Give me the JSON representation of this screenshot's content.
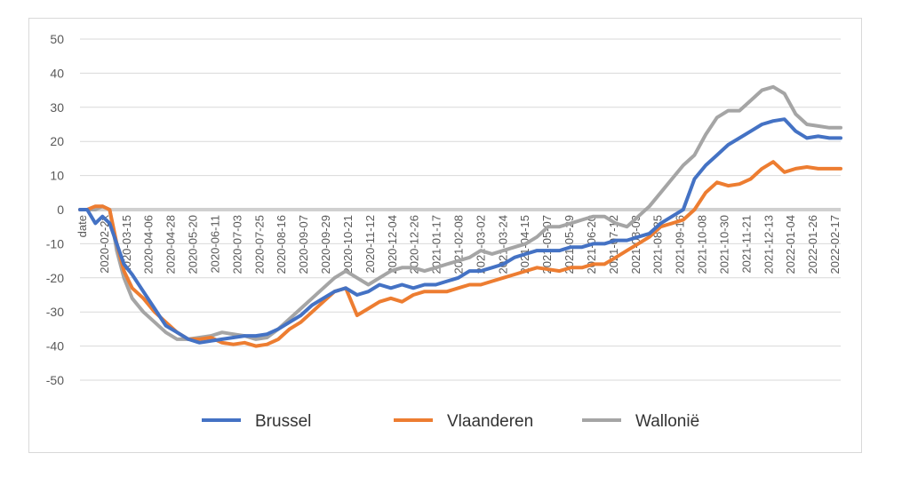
{
  "chart_data": {
    "type": "line",
    "title": "",
    "xlabel": "",
    "ylabel": "",
    "ylim": [
      -50,
      50
    ],
    "yticks": [
      -50,
      -40,
      -30,
      -20,
      -10,
      0,
      10,
      20,
      30,
      40,
      50
    ],
    "xticks": [
      "date",
      "2020-02-2x",
      "2020-03-15",
      "2020-04-06",
      "2020-04-28",
      "2020-05-20",
      "2020-06-11",
      "2020-07-03",
      "2020-07-25",
      "2020-08-16",
      "2020-09-07",
      "2020-09-29",
      "2020-10-21",
      "2020-11-12",
      "2020-12-04",
      "2020-12-26",
      "2021-01-17",
      "2021-02-08",
      "2021-03-02",
      "2021-03-24",
      "2021-04-15",
      "2021-05-07",
      "2021-05-29",
      "2021-06-20",
      "2021-07-12",
      "2021-08-03",
      "2021-08-25",
      "2021-09-16",
      "2021-10-08",
      "2021-10-30",
      "2021-11-21",
      "2021-12-13",
      "2022-01-04",
      "2022-01-26",
      "2022-02-17"
    ],
    "grid": true,
    "legend_position": "bottom",
    "series": [
      {
        "name": "Brussel",
        "color": "#4472c4",
        "x": [
          "2020-02-15",
          "2020-02-22",
          "2020-03-01",
          "2020-03-08",
          "2020-03-15",
          "2020-03-22",
          "2020-03-29",
          "2020-04-06",
          "2020-04-17",
          "2020-04-28",
          "2020-05-09",
          "2020-05-20",
          "2020-05-31",
          "2020-06-11",
          "2020-06-22",
          "2020-07-03",
          "2020-07-14",
          "2020-07-25",
          "2020-08-05",
          "2020-08-16",
          "2020-08-27",
          "2020-09-07",
          "2020-09-18",
          "2020-09-29",
          "2020-10-10",
          "2020-10-21",
          "2020-11-01",
          "2020-11-12",
          "2020-11-23",
          "2020-12-04",
          "2020-12-15",
          "2020-12-26",
          "2021-01-06",
          "2021-01-17",
          "2021-01-28",
          "2021-02-08",
          "2021-02-19",
          "2021-03-02",
          "2021-03-13",
          "2021-03-24",
          "2021-04-04",
          "2021-04-15",
          "2021-04-26",
          "2021-05-07",
          "2021-05-18",
          "2021-05-29",
          "2021-06-09",
          "2021-06-20",
          "2021-07-01",
          "2021-07-12",
          "2021-07-23",
          "2021-08-03",
          "2021-08-14",
          "2021-08-25",
          "2021-09-05",
          "2021-09-16",
          "2021-09-27",
          "2021-10-08",
          "2021-10-19",
          "2021-10-30",
          "2021-11-10",
          "2021-11-21",
          "2021-12-02",
          "2021-12-13",
          "2021-12-24",
          "2022-01-04",
          "2022-01-15",
          "2022-01-26",
          "2022-02-06",
          "2022-02-17",
          "2022-02-28"
        ],
        "values": [
          0,
          0,
          -4,
          -2,
          -4,
          -10,
          -16,
          -19,
          -24,
          -29,
          -34,
          -36,
          -38,
          -39,
          -38.5,
          -38,
          -37.5,
          -37,
          -37,
          -36.5,
          -35,
          -33,
          -31,
          -28,
          -26,
          -24,
          -23,
          -25,
          -24,
          -22,
          -23,
          -22,
          -23,
          -22,
          -22,
          -21,
          -20,
          -18,
          -18,
          -17,
          -16,
          -14,
          -13,
          -12,
          -12,
          -12,
          -11,
          -11,
          -10,
          -10,
          -9,
          -9,
          -8,
          -7,
          -4,
          -2,
          0,
          9,
          13,
          16,
          19,
          21,
          23,
          25,
          26,
          26.5,
          23,
          21,
          21.5,
          21,
          21
        ],
        "vals_note": ""
      },
      {
        "name": "Vlaanderen",
        "color": "#ed7d31",
        "x": [
          "2020-02-15",
          "2020-02-22",
          "2020-03-01",
          "2020-03-08",
          "2020-03-15",
          "2020-03-22",
          "2020-03-29",
          "2020-04-06",
          "2020-04-17",
          "2020-04-28",
          "2020-05-09",
          "2020-05-20",
          "2020-05-31",
          "2020-06-11",
          "2020-06-22",
          "2020-07-03",
          "2020-07-14",
          "2020-07-25",
          "2020-08-05",
          "2020-08-16",
          "2020-08-27",
          "2020-09-07",
          "2020-09-18",
          "2020-09-29",
          "2020-10-10",
          "2020-10-21",
          "2020-11-01",
          "2020-11-12",
          "2020-11-23",
          "2020-12-04",
          "2020-12-15",
          "2020-12-26",
          "2021-01-06",
          "2021-01-17",
          "2021-01-28",
          "2021-02-08",
          "2021-02-19",
          "2021-03-02",
          "2021-03-13",
          "2021-03-24",
          "2021-04-04",
          "2021-04-15",
          "2021-04-26",
          "2021-05-07",
          "2021-05-18",
          "2021-05-29",
          "2021-06-09",
          "2021-06-20",
          "2021-07-01",
          "2021-07-12",
          "2021-07-23",
          "2021-08-03",
          "2021-08-14",
          "2021-08-25",
          "2021-09-05",
          "2021-09-16",
          "2021-09-27",
          "2021-10-08",
          "2021-10-19",
          "2021-10-30",
          "2021-11-10",
          "2021-11-21",
          "2021-12-02",
          "2021-12-13",
          "2021-12-24",
          "2022-01-04",
          "2022-01-15",
          "2022-01-26",
          "2022-02-06",
          "2022-02-17",
          "2022-02-28"
        ],
        "values": [
          0,
          0,
          1,
          1,
          0,
          -10,
          -18,
          -23,
          -26,
          -30,
          -33,
          -36,
          -38,
          -38,
          -37.5,
          -39,
          -39.5,
          -39,
          -40,
          -39.5,
          -38,
          -35,
          -33,
          -30,
          -27,
          -24,
          -23,
          -31,
          -29,
          -27,
          -26,
          -27,
          -25,
          -24,
          -24,
          -24,
          -23,
          -22,
          -22,
          -21,
          -20,
          -19,
          -18,
          -17,
          -17.5,
          -18,
          -17,
          -17,
          -16,
          -16,
          -14,
          -12,
          -10,
          -8,
          -5,
          -4,
          -3,
          0,
          5,
          8,
          7,
          7.5,
          9,
          12,
          14,
          11,
          12,
          12.5,
          12,
          12,
          12
        ],
        "vals_note": ""
      },
      {
        "name": "Wallonië",
        "color": "#a5a5a5",
        "x": [
          "2020-02-15",
          "2020-02-22",
          "2020-03-01",
          "2020-03-08",
          "2020-03-15",
          "2020-03-22",
          "2020-03-29",
          "2020-04-06",
          "2020-04-17",
          "2020-04-28",
          "2020-05-09",
          "2020-05-20",
          "2020-05-31",
          "2020-06-11",
          "2020-06-22",
          "2020-07-03",
          "2020-07-14",
          "2020-07-25",
          "2020-08-05",
          "2020-08-16",
          "2020-08-27",
          "2020-09-07",
          "2020-09-18",
          "2020-09-29",
          "2020-10-10",
          "2020-10-21",
          "2020-11-01",
          "2020-11-12",
          "2020-11-23",
          "2020-12-04",
          "2020-12-15",
          "2020-12-26",
          "2021-01-06",
          "2021-01-17",
          "2021-01-28",
          "2021-02-08",
          "2021-02-19",
          "2021-03-02",
          "2021-03-13",
          "2021-03-24",
          "2021-04-04",
          "2021-04-15",
          "2021-04-26",
          "2021-05-07",
          "2021-05-18",
          "2021-05-29",
          "2021-06-09",
          "2021-06-20",
          "2021-07-01",
          "2021-07-12",
          "2021-07-23",
          "2021-08-03",
          "2021-08-14",
          "2021-08-25",
          "2021-09-05",
          "2021-09-16",
          "2021-09-27",
          "2021-10-08",
          "2021-10-19",
          "2021-10-30",
          "2021-11-10",
          "2021-11-21",
          "2021-12-02",
          "2021-12-13",
          "2021-12-24",
          "2022-01-04",
          "2022-01-15",
          "2022-01-26",
          "2022-02-06",
          "2022-02-17",
          "2022-02-28"
        ],
        "values": [
          0,
          0,
          0,
          1,
          0,
          -12,
          -20,
          -26,
          -30,
          -33,
          -36,
          -38,
          -38,
          -37.5,
          -37,
          -36,
          -36.5,
          -37,
          -38,
          -37.5,
          -35,
          -32,
          -29,
          -26,
          -23,
          -20,
          -18,
          -20,
          -22,
          -20,
          -18,
          -17,
          -17,
          -18,
          -17,
          -16,
          -15,
          -14,
          -12,
          -13,
          -12,
          -11,
          -10,
          -8,
          -5,
          -5,
          -4,
          -3,
          -2,
          -2,
          -4,
          -5,
          -2,
          1,
          5,
          9,
          13,
          16,
          22,
          27,
          29,
          29,
          32,
          35,
          36,
          34,
          28,
          25,
          24.5,
          24,
          24
        ]
      }
    ]
  }
}
